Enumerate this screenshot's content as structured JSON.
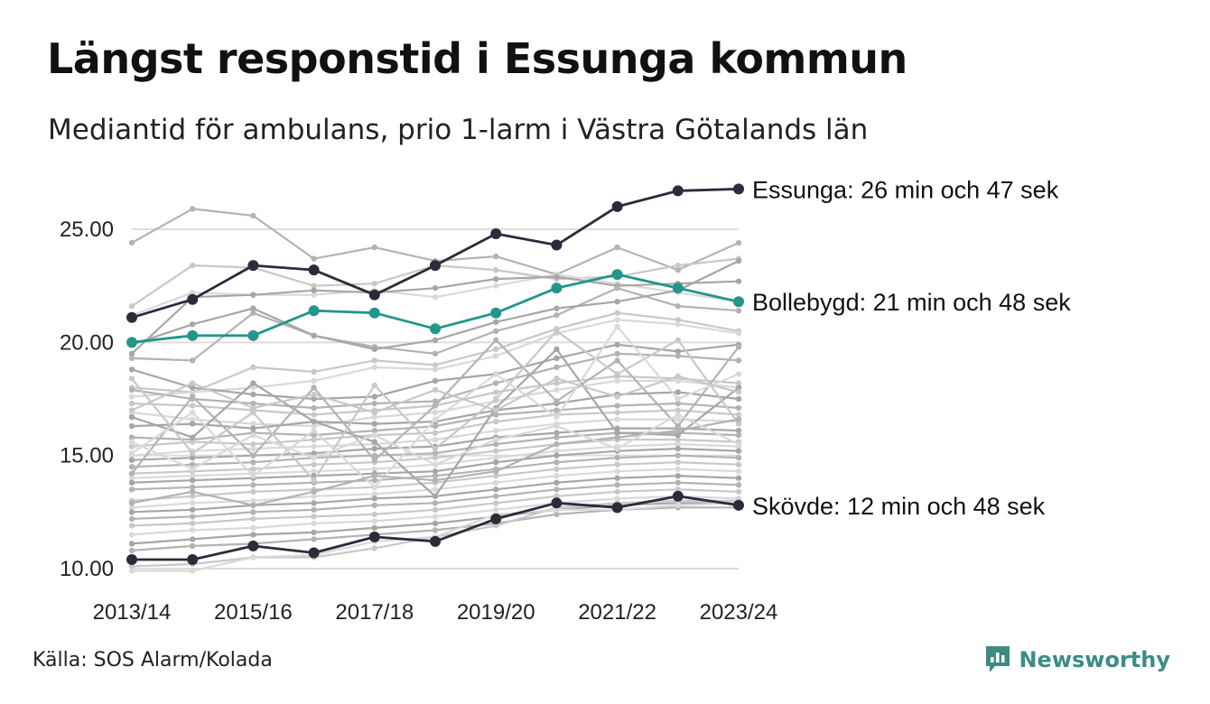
{
  "title": "Längst responstid i Essunga kommun",
  "subtitle": "Mediantid för ambulans, prio 1-larm i Västra Götalands län",
  "source": "Källa: SOS Alarm/Kolada",
  "brand": "Newsworthy",
  "colors": {
    "background_lines": [
      "#b3b3b3",
      "#c8c8c8",
      "#d9d9d9",
      "#a6a6a6"
    ],
    "dark": "#2b2b3b",
    "teal": "#23958a",
    "grid": "#dddddd",
    "brand": "#3b8c85"
  },
  "chart_data": {
    "type": "line",
    "title": "Längst responstid i Essunga kommun",
    "subtitle": "Mediantid för ambulans, prio 1-larm i Västra Götalands län",
    "x": [
      "2013/14",
      "2014/15",
      "2015/16",
      "2016/17",
      "2017/18",
      "2018/19",
      "2019/20",
      "2020/21",
      "2021/22",
      "2022/23",
      "2023/24"
    ],
    "x_tick_labels": [
      "2013/14",
      "2015/16",
      "2017/18",
      "2019/20",
      "2021/22",
      "2023/24"
    ],
    "y_ticks": [
      10,
      15,
      20,
      25
    ],
    "y_tick_labels": [
      "10.00",
      "15.00",
      "20.00",
      "25.00"
    ],
    "ylim": [
      9.8,
      27.2
    ],
    "grid": "horizontal",
    "legend": "none",
    "highlighted": [
      {
        "name": "Essunga",
        "label": "Essunga: 26 min och 47 sek",
        "color": "dark",
        "values": [
          21.1,
          21.9,
          23.4,
          23.2,
          22.1,
          23.4,
          24.8,
          24.3,
          26.0,
          26.7,
          26.78
        ]
      },
      {
        "name": "Bollebygd",
        "label": "Bollebygd: 21 min och 48 sek",
        "color": "teal",
        "values": [
          20.0,
          20.3,
          20.3,
          21.4,
          21.3,
          20.6,
          21.3,
          22.4,
          23.0,
          22.4,
          21.8
        ]
      },
      {
        "name": "Skövde",
        "label": "Skövde: 12 min och 48 sek",
        "color": "dark",
        "values": [
          10.4,
          10.4,
          11.0,
          10.7,
          11.4,
          11.2,
          12.2,
          12.9,
          12.7,
          13.2,
          12.8
        ]
      }
    ],
    "background_series": [
      {
        "values": [
          24.4,
          25.9,
          25.6,
          23.7,
          24.2,
          23.6,
          23.8,
          23.0,
          24.2,
          23.2,
          24.4
        ]
      },
      {
        "values": [
          21.6,
          23.4,
          23.3,
          22.5,
          22.6,
          23.4,
          23.2,
          22.8,
          22.9,
          23.4,
          23.7
        ]
      },
      {
        "values": [
          21.2,
          22.2,
          22.1,
          22.1,
          22.3,
          22.0,
          22.5,
          23.0,
          22.6,
          22.2,
          21.8
        ]
      },
      {
        "values": [
          19.5,
          22.0,
          22.1,
          22.3,
          22.2,
          22.4,
          22.8,
          22.9,
          22.5,
          22.6,
          22.7
        ]
      },
      {
        "values": [
          19.3,
          19.2,
          21.3,
          20.3,
          19.8,
          19.5,
          20.5,
          21.2,
          22.4,
          21.6,
          21.4
        ]
      },
      {
        "values": [
          18.0,
          17.8,
          18.9,
          18.7,
          19.2,
          19.0,
          19.7,
          20.6,
          21.3,
          21.0,
          20.5
        ]
      },
      {
        "values": [
          17.6,
          17.8,
          18.0,
          18.3,
          18.9,
          18.8,
          19.4,
          20.4,
          21.0,
          20.8,
          20.4
        ]
      },
      {
        "values": [
          18.8,
          18.0,
          17.7,
          17.5,
          17.6,
          18.3,
          18.6,
          19.3,
          19.9,
          19.6,
          19.9
        ]
      },
      {
        "values": [
          17.9,
          17.5,
          17.3,
          17.1,
          17.3,
          17.4,
          18.2,
          18.9,
          19.5,
          19.4,
          19.2
        ]
      },
      {
        "values": [
          17.3,
          17.2,
          17.0,
          16.8,
          17.0,
          17.2,
          17.8,
          18.2,
          18.5,
          18.4,
          18.2
        ]
      },
      {
        "values": [
          16.9,
          16.6,
          16.4,
          16.3,
          16.7,
          16.9,
          17.4,
          17.9,
          18.3,
          18.3,
          18.0
        ]
      },
      {
        "values": [
          16.3,
          16.4,
          16.2,
          16.5,
          16.4,
          16.5,
          17.0,
          17.3,
          17.7,
          17.8,
          17.5
        ]
      },
      {
        "values": [
          15.8,
          15.7,
          16.0,
          15.9,
          16.1,
          16.3,
          16.8,
          17.0,
          17.2,
          17.3,
          17.1
        ]
      },
      {
        "values": [
          15.4,
          15.6,
          15.5,
          15.7,
          15.9,
          16.0,
          16.5,
          16.8,
          16.9,
          17.0,
          16.8
        ]
      },
      {
        "values": [
          15.0,
          15.2,
          15.3,
          15.4,
          15.5,
          15.7,
          16.1,
          16.4,
          16.6,
          16.6,
          16.5
        ]
      },
      {
        "values": [
          14.8,
          14.9,
          15.0,
          15.1,
          15.3,
          15.4,
          15.8,
          16.0,
          16.2,
          16.2,
          16.1
        ]
      },
      {
        "values": [
          14.5,
          14.6,
          14.7,
          14.9,
          15.0,
          15.1,
          15.5,
          15.8,
          16.0,
          16.0,
          15.9
        ]
      },
      {
        "values": [
          14.2,
          14.3,
          14.4,
          14.6,
          14.7,
          14.9,
          15.2,
          15.5,
          15.7,
          15.7,
          15.6
        ]
      },
      {
        "values": [
          14.0,
          14.1,
          14.2,
          14.3,
          14.4,
          14.6,
          14.9,
          15.2,
          15.4,
          15.5,
          15.4
        ]
      },
      {
        "values": [
          13.8,
          13.9,
          14.0,
          14.1,
          14.2,
          14.3,
          14.7,
          15.0,
          15.2,
          15.3,
          15.2
        ]
      },
      {
        "values": [
          13.5,
          13.6,
          13.7,
          13.8,
          13.9,
          14.1,
          14.4,
          14.7,
          14.9,
          15.0,
          14.9
        ]
      },
      {
        "values": [
          13.0,
          13.2,
          13.4,
          13.5,
          13.6,
          13.8,
          14.1,
          14.4,
          14.6,
          14.7,
          14.6
        ]
      },
      {
        "values": [
          12.7,
          12.9,
          13.0,
          13.2,
          13.3,
          13.5,
          13.8,
          14.1,
          14.3,
          14.4,
          14.3
        ]
      },
      {
        "values": [
          12.5,
          12.6,
          12.8,
          12.9,
          13.1,
          13.2,
          13.5,
          13.8,
          14.0,
          14.1,
          14.0
        ]
      },
      {
        "values": [
          12.2,
          12.3,
          12.5,
          12.6,
          12.8,
          12.9,
          13.2,
          13.5,
          13.7,
          13.8,
          13.7
        ]
      },
      {
        "values": [
          11.9,
          12.0,
          12.2,
          12.3,
          12.4,
          12.6,
          12.9,
          13.2,
          13.4,
          13.5,
          13.4
        ]
      },
      {
        "values": [
          11.5,
          11.7,
          11.8,
          12.0,
          12.1,
          12.3,
          12.6,
          12.9,
          13.1,
          13.2,
          13.1
        ]
      },
      {
        "values": [
          11.1,
          11.3,
          11.5,
          11.6,
          11.8,
          12.0,
          12.3,
          12.6,
          12.8,
          12.9,
          12.9
        ]
      },
      {
        "values": [
          10.8,
          11.0,
          11.1,
          11.3,
          11.5,
          11.7,
          12.0,
          12.4,
          12.6,
          12.7,
          12.7
        ]
      },
      {
        "values": [
          10.1,
          10.2,
          10.5,
          10.5,
          10.9,
          11.4,
          11.9,
          12.7,
          12.9,
          13.0,
          13.0
        ]
      },
      {
        "values": [
          9.9,
          9.9,
          10.5,
          10.6,
          11.2,
          11.4,
          12.4,
          12.6,
          12.6,
          12.8,
          12.9
        ]
      },
      {
        "values": [
          16.7,
          15.8,
          18.2,
          16.5,
          15.6,
          13.2,
          17.1,
          19.7,
          16.0,
          15.9,
          18.0
        ]
      },
      {
        "values": [
          14.2,
          17.6,
          15.0,
          18.0,
          14.8,
          17.2,
          20.1,
          17.4,
          19.2,
          16.3,
          19.8
        ]
      },
      {
        "values": [
          18.4,
          15.1,
          16.9,
          13.9,
          18.1,
          15.3,
          17.5,
          20.5,
          18.6,
          20.1,
          16.4
        ]
      },
      {
        "values": [
          15.1,
          16.9,
          14.1,
          16.1,
          13.6,
          16.6,
          18.6,
          16.7,
          20.7,
          17.5,
          18.6
        ]
      },
      {
        "values": [
          19.9,
          20.8,
          21.5,
          20.3,
          19.7,
          20.1,
          20.9,
          21.5,
          21.8,
          22.3,
          23.6
        ]
      },
      {
        "values": [
          12.9,
          13.4,
          12.8,
          13.4,
          14.1,
          13.9,
          14.3,
          15.5,
          15.8,
          16.1,
          16.6
        ]
      },
      {
        "values": [
          17.0,
          18.2,
          17.1,
          17.7,
          16.9,
          17.9,
          17.0,
          18.4,
          17.6,
          18.5,
          17.8
        ]
      },
      {
        "values": [
          15.6,
          14.4,
          15.9,
          14.9,
          15.9,
          14.6,
          15.7,
          16.3,
          15.3,
          16.8,
          15.5
        ]
      }
    ]
  }
}
